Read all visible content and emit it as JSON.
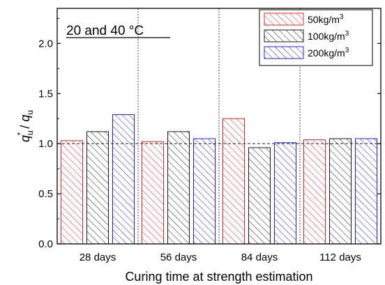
{
  "chart_data": {
    "type": "bar",
    "title": "20 and 40 °C",
    "xlabel": "Curing time at strength estimation",
    "ylabel": "qu* / qu",
    "ylabel_parts": {
      "base": "q",
      "sub": "u",
      "sup": "*",
      "slash": " / "
    },
    "ylim": [
      0,
      2.35
    ],
    "yticks": [
      "0.0",
      "0.5",
      "1.0",
      "1.5",
      "2.0"
    ],
    "reference_line": 1.0,
    "categories": [
      "28 days",
      "56 days",
      "84 days",
      "112 days"
    ],
    "series": [
      {
        "name": "50kg/m3",
        "name_base": "50kg/m",
        "name_sup": "3",
        "color": "#e8282b",
        "values": [
          1.03,
          1.02,
          1.25,
          1.04
        ]
      },
      {
        "name": "100kg/m3",
        "name_base": "100kg/m",
        "name_sup": "3",
        "color": "#1a1a1a",
        "values": [
          1.12,
          1.12,
          0.96,
          1.05
        ]
      },
      {
        "name": "200kg/m3",
        "name_base": "200kg/m",
        "name_sup": "3",
        "color": "#2020e0",
        "values": [
          1.29,
          1.05,
          1.01,
          1.05
        ]
      }
    ],
    "legend_position": "top-right",
    "grid": "vertical dotted separators between categories"
  }
}
